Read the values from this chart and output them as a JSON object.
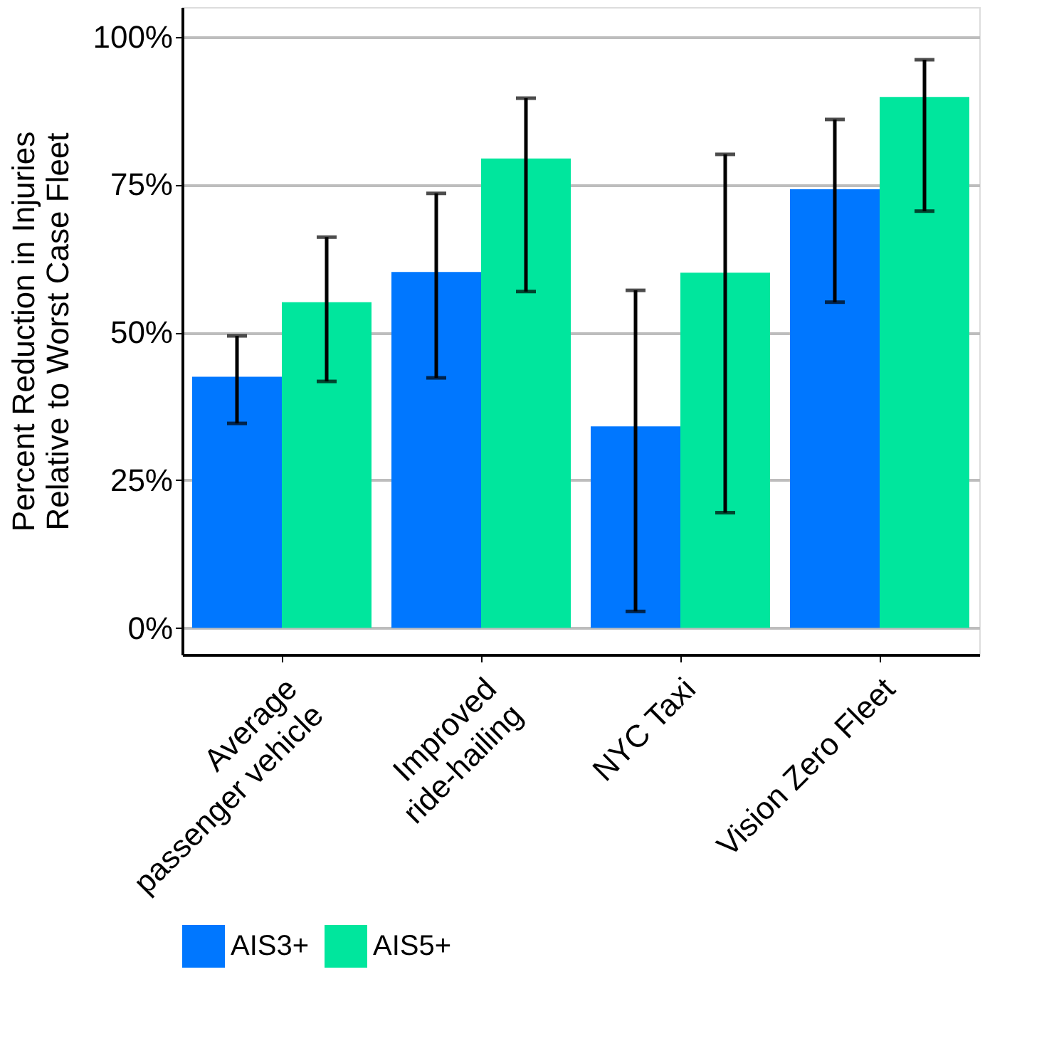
{
  "chart_data": {
    "type": "bar",
    "ylabel": "Percent Reduction in Injuries\nRelative to Worst Case Fleet",
    "categories": [
      "Average\npassenger vehicle",
      "Improved\nride-hailing",
      "NYC Taxi",
      "Vision Zero Fleet"
    ],
    "series": [
      {
        "name": "AIS3+",
        "color": "#0077ff",
        "values": [
          42.5,
          60.2,
          34.1,
          74.2
        ],
        "errors": [
          [
            34.6,
            49.4
          ],
          [
            42.3,
            73.5
          ],
          [
            2.8,
            57.1
          ],
          [
            55.1,
            86.0
          ]
        ]
      },
      {
        "name": "AIS5+",
        "color": "#00e69d",
        "values": [
          55.1,
          79.4,
          60.1,
          89.8
        ],
        "errors": [
          [
            41.7,
            66.1
          ],
          [
            56.9,
            89.6
          ],
          [
            19.5,
            80.1
          ],
          [
            70.5,
            96.1
          ]
        ]
      }
    ],
    "ylim": [
      -4.5,
      105
    ],
    "yticks": [
      {
        "value": 0,
        "label": "0%"
      },
      {
        "value": 25,
        "label": "25%"
      },
      {
        "value": 50,
        "label": "50%"
      },
      {
        "value": 75,
        "label": "75%"
      },
      {
        "value": 100,
        "label": "100%"
      }
    ],
    "grid": "y",
    "legend": "bottom"
  }
}
